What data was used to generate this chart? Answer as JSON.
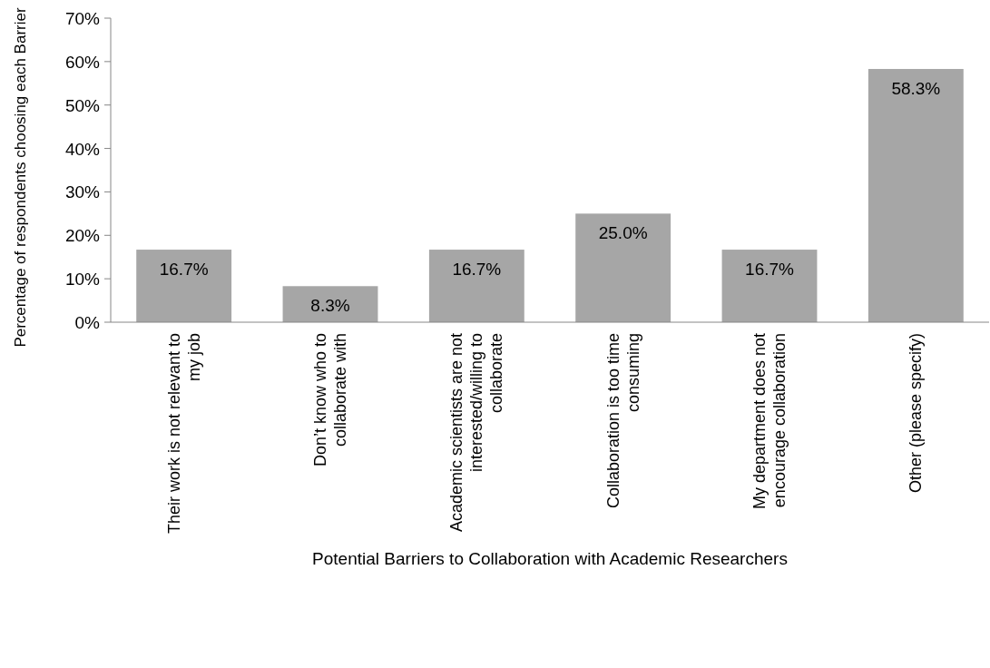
{
  "chart_data": {
    "type": "bar",
    "xlabel": "Potential Barriers to Collaboration with Academic Researchers",
    "ylabel": "Percentage of respondents choosing each Barrier",
    "categories": [
      "Their work is not relevant to my job",
      "Don’t know who to collaborate with",
      "Academic scientists are not interested/willing to collaborate",
      "Collaboration is too time consuming",
      "My department does not encourage collaboration",
      "Other (please specify)"
    ],
    "values": [
      16.7,
      8.3,
      16.7,
      25.0,
      16.7,
      58.3
    ],
    "value_labels": [
      "16.7%",
      "8.3%",
      "16.7%",
      "25.0%",
      "16.7%",
      "58.3%"
    ],
    "color": "#a6a6a6",
    "ylim": [
      0,
      70
    ],
    "yticks": [
      {
        "value": 0,
        "label": "0%"
      },
      {
        "value": 10,
        "label": "10%"
      },
      {
        "value": 20,
        "label": "20%"
      },
      {
        "value": 30,
        "label": "30%"
      },
      {
        "value": 40,
        "label": "40%"
      },
      {
        "value": 50,
        "label": "50%"
      },
      {
        "value": 60,
        "label": "60%"
      },
      {
        "value": 70,
        "label": "70%"
      }
    ],
    "grid": false
  }
}
